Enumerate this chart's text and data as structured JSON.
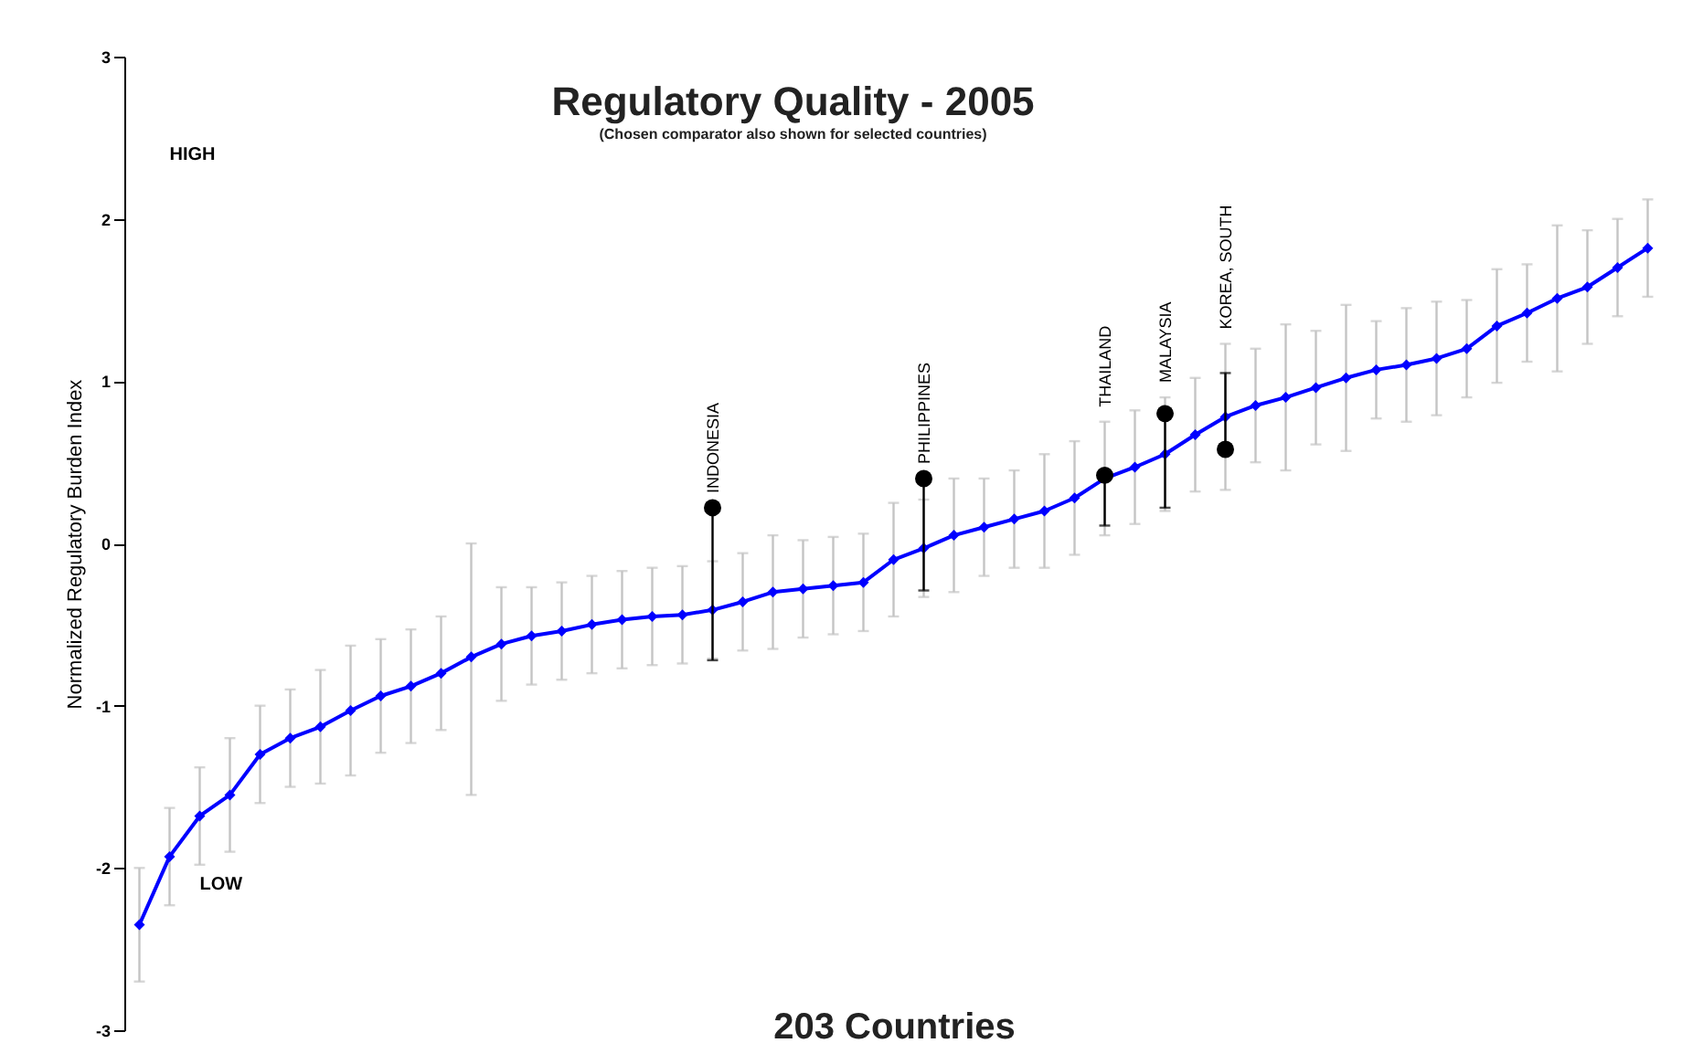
{
  "chart_data": {
    "type": "scatter",
    "title": "Regulatory Quality - 2005",
    "subtitle": "(Chosen comparator also shown for selected countries)",
    "xlabel": "203 Countries",
    "ylabel": "Normalized Regulatory Burden Index",
    "ylim": [
      -3,
      3
    ],
    "yticks": [
      -3,
      -2,
      -1,
      0,
      1,
      2,
      3
    ],
    "tick_labels": "y",
    "annotations": [
      "HIGH",
      "LOW",
      "INDONESIA",
      "PHILIPPINES",
      "THAILAND",
      "MALAYSIA",
      "KOREA, SOUTH"
    ],
    "categories": [
      null,
      null,
      null,
      null,
      null,
      null,
      null,
      null,
      null,
      null,
      null,
      null,
      null,
      null,
      null,
      null,
      null,
      null,
      null,
      null,
      null,
      null,
      null,
      null,
      null,
      null,
      null,
      null,
      null,
      null,
      null,
      null,
      null,
      null,
      null,
      null,
      null,
      null,
      null,
      null,
      null,
      null,
      null,
      null,
      null,
      null,
      null,
      null,
      null,
      null,
      null
    ],
    "series": [
      {
        "type": "line",
        "color": "#0000ff",
        "marker": "diamond",
        "line_style": "solid",
        "values": [
          -2.35,
          -1.93,
          -1.68,
          -1.55,
          -1.3,
          -1.2,
          -1.13,
          -1.03,
          -0.94,
          -0.88,
          -0.8,
          -0.7,
          -0.62,
          -0.57,
          -0.54,
          -0.5,
          -0.47,
          -0.45,
          -0.44,
          -0.41,
          -0.36,
          -0.3,
          -0.28,
          -0.26,
          -0.24,
          -0.1,
          -0.03,
          0.05,
          0.1,
          0.15,
          0.2,
          0.28,
          0.4,
          0.47,
          0.55,
          0.67,
          0.78,
          0.85,
          0.9,
          0.96,
          1.02,
          1.07,
          1.1,
          1.14,
          1.2,
          1.34,
          1.42,
          1.51,
          1.58,
          1.7,
          1.82
        ],
        "errors": [
          0.35,
          0.3,
          0.3,
          0.35,
          0.3,
          0.3,
          0.35,
          0.4,
          0.35,
          0.35,
          0.35,
          [
            -1.55,
            0
          ],
          0.35,
          0.3,
          0.3,
          0.3,
          0.3,
          0.3,
          0.3,
          0.3,
          0.3,
          0.35,
          0.3,
          0.3,
          0.3,
          0.35,
          0.3,
          0.35,
          0.3,
          0.3,
          0.35,
          0.35,
          0.35,
          0.35,
          0.35,
          0.35,
          0.45,
          0.35,
          0.45,
          0.35,
          0.45,
          0.3,
          0.35,
          0.35,
          0.3,
          0.35,
          0.3,
          0.45,
          0.35,
          0.3,
          0.3
        ]
      },
      {
        "color": "#000000",
        "marker": "circle",
        "values": [
          null,
          null,
          null,
          null,
          null,
          null,
          null,
          null,
          null,
          null,
          null,
          null,
          null,
          null,
          null,
          null,
          null,
          null,
          null,
          0.22,
          null,
          null,
          null,
          null,
          null,
          null,
          0.4,
          null,
          null,
          null,
          null,
          null,
          0.42,
          null,
          0.8,
          null,
          0.58,
          null,
          null,
          null,
          null,
          null,
          null,
          null,
          null,
          null,
          null,
          null,
          null,
          null,
          null
        ],
        "errors": [
          null,
          null,
          null,
          null,
          null,
          null,
          null,
          null,
          null,
          null,
          null,
          null,
          null,
          null,
          null,
          null,
          null,
          null,
          null,
          [
            -0.72,
            0.22
          ],
          null,
          null,
          null,
          null,
          null,
          null,
          [
            -0.29,
            0.4
          ],
          null,
          null,
          null,
          null,
          null,
          [
            0.11,
            0.42
          ],
          null,
          [
            0.22,
            0.8
          ],
          null,
          [
            0.55,
            1.05
          ],
          null,
          null,
          null,
          null,
          null,
          null,
          null,
          null,
          null,
          null,
          null,
          null,
          null,
          null
        ]
      }
    ]
  }
}
